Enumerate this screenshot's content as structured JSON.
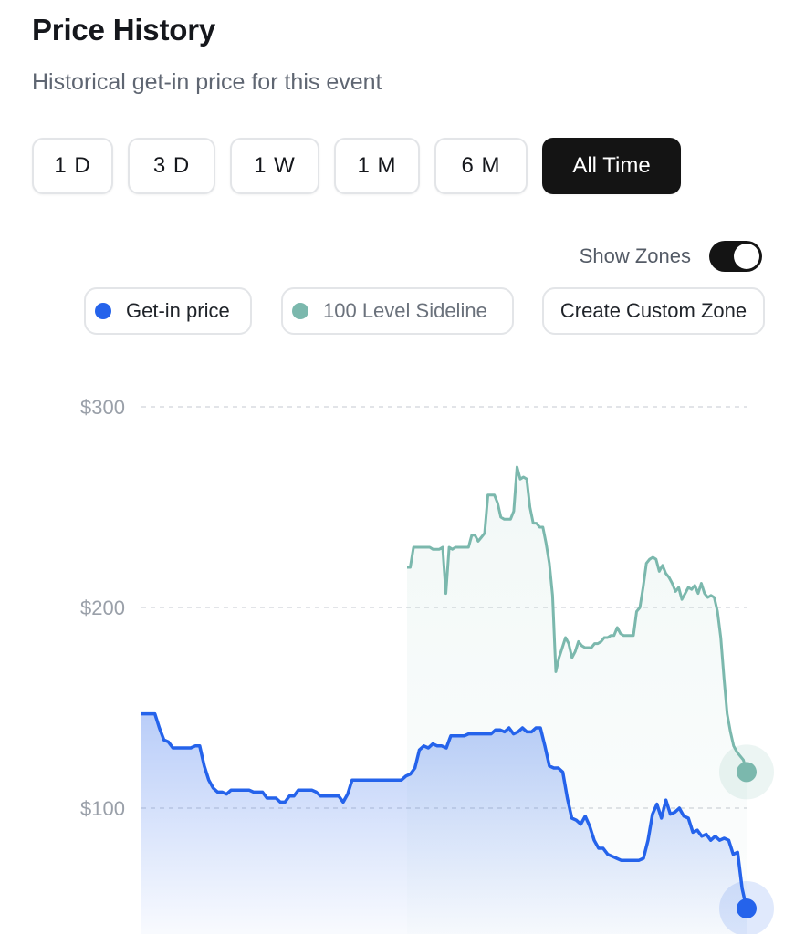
{
  "header": {
    "title": "Price History",
    "subtitle": "Historical get-in price for this event"
  },
  "ranges": [
    {
      "label": "1 D",
      "active": false
    },
    {
      "label": "3 D",
      "active": false
    },
    {
      "label": "1 W",
      "active": false
    },
    {
      "label": "1 M",
      "active": false
    },
    {
      "label": "6 M",
      "active": false
    },
    {
      "label": "All Time",
      "active": true
    }
  ],
  "zones": {
    "toggle_label": "Show Zones",
    "toggle_on": true,
    "chips": [
      {
        "label": "Get-in price",
        "color": "#2563eb",
        "active": true
      },
      {
        "label": "100 Level Sideline",
        "color": "#7bb8ad",
        "active": false
      },
      {
        "label": "Create Custom Zone"
      }
    ]
  },
  "colors": {
    "get_in": "#2563eb",
    "sideline": "#7bb8ad",
    "grid": "#d9dbe0",
    "axis_text": "#9aa0a9"
  },
  "chart_data": {
    "type": "line",
    "y_ticks": [
      "$300",
      "$200",
      "$100"
    ],
    "ylim": [
      40,
      300
    ],
    "grid": true,
    "series": [
      {
        "name": "Get-in price",
        "values": [
          147,
          147,
          147,
          147,
          140,
          134,
          133,
          130,
          130,
          130,
          130,
          130,
          131,
          131,
          121,
          114,
          110,
          108,
          108,
          107,
          109,
          109,
          109,
          109,
          109,
          108,
          108,
          108,
          105,
          105,
          105,
          103,
          103,
          106,
          106,
          109,
          109,
          109,
          109,
          108,
          106,
          106,
          106,
          106,
          106,
          103,
          107,
          114,
          114,
          114,
          114,
          114,
          114,
          114,
          114,
          114,
          114,
          114,
          114,
          116,
          117,
          120,
          129,
          131,
          130,
          132,
          131,
          131,
          130,
          136,
          136,
          136,
          136,
          137,
          137,
          137,
          137,
          137,
          137,
          139,
          139,
          138,
          140,
          137,
          138,
          140,
          138,
          138,
          140,
          140,
          131,
          121,
          120,
          120,
          118,
          105,
          95,
          94,
          92,
          96,
          91,
          84,
          80,
          80,
          77,
          76,
          75,
          74,
          74,
          74,
          74,
          74,
          75,
          84,
          97,
          102,
          95,
          104,
          97,
          98,
          100,
          96,
          95,
          88,
          89,
          86,
          87,
          84,
          86,
          84,
          85,
          84,
          77,
          78,
          60,
          50
        ]
      },
      {
        "name": "100 Level Sideline",
        "values": [
          220,
          220,
          230,
          230,
          230,
          230,
          230,
          230,
          229,
          229,
          229,
          230,
          207,
          230,
          229,
          230,
          230,
          230,
          230,
          230,
          236,
          236,
          233,
          235,
          237,
          256,
          256,
          256,
          252,
          245,
          244,
          244,
          244,
          248,
          270,
          264,
          265,
          264,
          250,
          242,
          242,
          240,
          240,
          232,
          222,
          206,
          168,
          175,
          180,
          185,
          182,
          175,
          178,
          183,
          181,
          180,
          180,
          180,
          182,
          182,
          183,
          185,
          185,
          186,
          186,
          190,
          187,
          186,
          186,
          186,
          186,
          198,
          200,
          210,
          222,
          224,
          225,
          224,
          218,
          221,
          217,
          215,
          212,
          208,
          210,
          204,
          207,
          210,
          209,
          211,
          207,
          212,
          207,
          205,
          206,
          205,
          198,
          185,
          165,
          147,
          138,
          131,
          128,
          126,
          124,
          118
        ]
      }
    ]
  }
}
